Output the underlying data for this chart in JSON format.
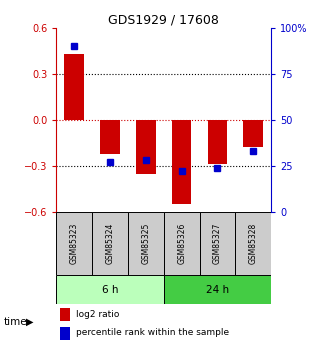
{
  "title": "GDS1929 / 17608",
  "samples": [
    "GSM85323",
    "GSM85324",
    "GSM85325",
    "GSM85326",
    "GSM85327",
    "GSM85328"
  ],
  "log2_ratio": [
    0.43,
    -0.22,
    -0.35,
    -0.55,
    -0.29,
    -0.18
  ],
  "percentile_rank": [
    90,
    27,
    28,
    22,
    24,
    33
  ],
  "groups": [
    {
      "label": "6 h",
      "indices": [
        0,
        1,
        2
      ],
      "color": "#bbffbb"
    },
    {
      "label": "24 h",
      "indices": [
        3,
        4,
        5
      ],
      "color": "#44cc44"
    }
  ],
  "ylim_left": [
    -0.6,
    0.6
  ],
  "ylim_right": [
    0,
    100
  ],
  "yticks_left": [
    -0.6,
    -0.3,
    0,
    0.3,
    0.6
  ],
  "yticks_right": [
    0,
    25,
    50,
    75,
    100
  ],
  "ytick_right_labels": [
    "0",
    "25",
    "50",
    "75",
    "100%"
  ],
  "bar_color_red": "#cc0000",
  "bar_color_blue": "#0000cc",
  "hline_color_black": "#000000",
  "hline_color_red": "#cc0000",
  "bg_color": "#ffffff",
  "sample_box_color": "#cccccc",
  "time_label": "time",
  "legend_red_label": "log2 ratio",
  "legend_blue_label": "percentile rank within the sample"
}
